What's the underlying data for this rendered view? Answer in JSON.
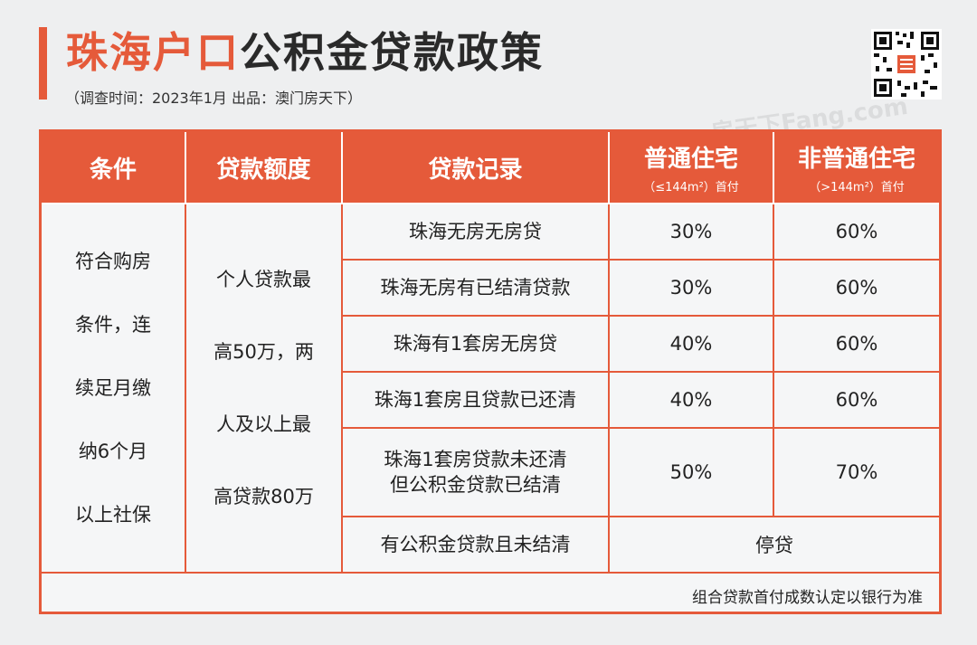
{
  "header": {
    "title_highlight": "珠海户口",
    "title_rest": "公积金贷款政策",
    "subtitle": "（调查时间：2023年1月   出品：澳门房天下）"
  },
  "watermark_text": "房天下Fang.com",
  "table": {
    "headers": {
      "condition": "条件",
      "amount": "贷款额度",
      "record": "贷款记录",
      "ordinary": "普通住宅",
      "ordinary_sub": "（≤144m²）首付",
      "non_ordinary": "非普通住宅",
      "non_ordinary_sub": "（>144m²）首付"
    },
    "condition_lines": [
      "符合购房",
      "条件，连",
      "续足月缴",
      "纳6个月",
      "以上社保"
    ],
    "amount_lines": [
      "个人贷款最",
      "高50万，两",
      "人及以上最",
      "高贷款80万"
    ],
    "rows": [
      {
        "record": "珠海无房无房贷",
        "ordinary": "30%",
        "non_ordinary": "60%"
      },
      {
        "record": "珠海无房有已结清贷款",
        "ordinary": "30%",
        "non_ordinary": "60%"
      },
      {
        "record": "珠海有1套房无房贷",
        "ordinary": "40%",
        "non_ordinary": "60%"
      },
      {
        "record": "珠海1套房且贷款已还清",
        "ordinary": "40%",
        "non_ordinary": "60%"
      },
      {
        "record_line1": "珠海1套房贷款未还清",
        "record_line2": "但公积金贷款已结清",
        "ordinary": "50%",
        "non_ordinary": "70%"
      },
      {
        "record": "有公积金贷款且未结清",
        "merged": "停贷"
      }
    ],
    "note": "组合贷款首付成数认定以银行为准"
  },
  "colors": {
    "accent": "#e55a3a",
    "background": "#eeeff0"
  }
}
